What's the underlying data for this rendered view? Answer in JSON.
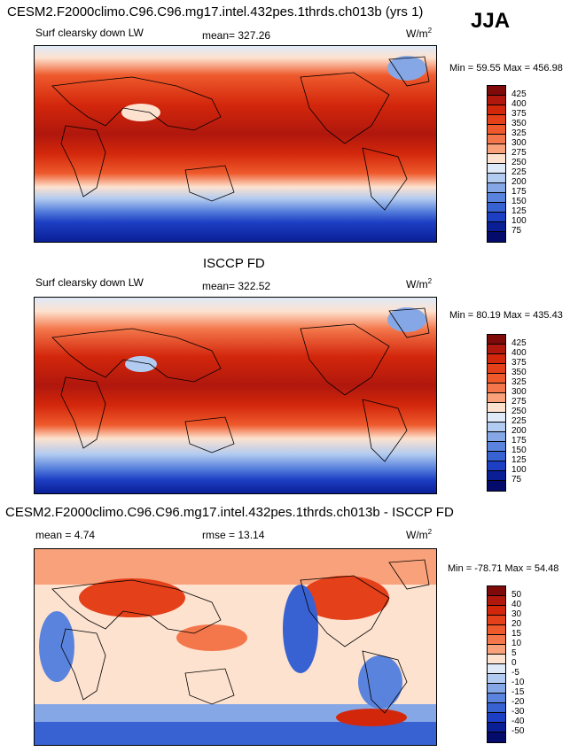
{
  "season": "JJA",
  "panels": [
    {
      "title": "CESM2.F2000climo.C96.C96.mg17.intel.432pes.1thrds.ch013b (yrs 1)",
      "variable": "Surf clearsky down LW",
      "stat": "mean= 327.26",
      "units": "W/m",
      "units_sup": "2",
      "minmax": "Min =  59.55 Max = 456.98",
      "cbar_labels": [
        "425",
        "400",
        "375",
        "350",
        "325",
        "300",
        "275",
        "250",
        "225",
        "200",
        "175",
        "150",
        "125",
        "100",
        "75"
      ],
      "cbar_colors": [
        "#7f0a0a",
        "#b0170d",
        "#d3270c",
        "#e4401a",
        "#ee5a2c",
        "#f4774b",
        "#f9a17a",
        "#fde2cf",
        "#dfeaf8",
        "#b2cbf0",
        "#86a7e6",
        "#5a83dd",
        "#3861d2",
        "#1d3fc4",
        "#0a1f96",
        "#050b6a"
      ]
    },
    {
      "title": "ISCCP FD",
      "variable": "Surf clearsky down LW",
      "stat": "mean= 322.52",
      "units": "W/m",
      "units_sup": "2",
      "minmax": "Min =  80.19 Max = 435.43",
      "cbar_labels": [
        "425",
        "400",
        "375",
        "350",
        "325",
        "300",
        "275",
        "250",
        "225",
        "200",
        "175",
        "150",
        "125",
        "100",
        "75"
      ],
      "cbar_colors": [
        "#7f0a0a",
        "#b0170d",
        "#d3270c",
        "#e4401a",
        "#ee5a2c",
        "#f4774b",
        "#f9a17a",
        "#fde2cf",
        "#dfeaf8",
        "#b2cbf0",
        "#86a7e6",
        "#5a83dd",
        "#3861d2",
        "#1d3fc4",
        "#0a1f96",
        "#050b6a"
      ]
    },
    {
      "title": "CESM2.F2000climo.C96.C96.mg17.intel.432pes.1thrds.ch013b - ISCCP FD",
      "stat_left": "mean =   4.74",
      "stat": "rmse =  13.14",
      "units": "W/m",
      "units_sup": "2",
      "minmax": "Min = -78.71 Max =  54.48",
      "cbar_labels": [
        "50",
        "40",
        "30",
        "20",
        "15",
        "10",
        "5",
        "0",
        "-5",
        "-10",
        "-15",
        "-20",
        "-30",
        "-40",
        "-50"
      ],
      "cbar_colors": [
        "#7f0a0a",
        "#b0170d",
        "#d3270c",
        "#e4401a",
        "#ee5a2c",
        "#f4774b",
        "#f9a17a",
        "#fde2cf",
        "#dfeaf8",
        "#b2cbf0",
        "#86a7e6",
        "#5a83dd",
        "#3861d2",
        "#1d3fc4",
        "#0a1f96",
        "#050b6a"
      ]
    }
  ]
}
